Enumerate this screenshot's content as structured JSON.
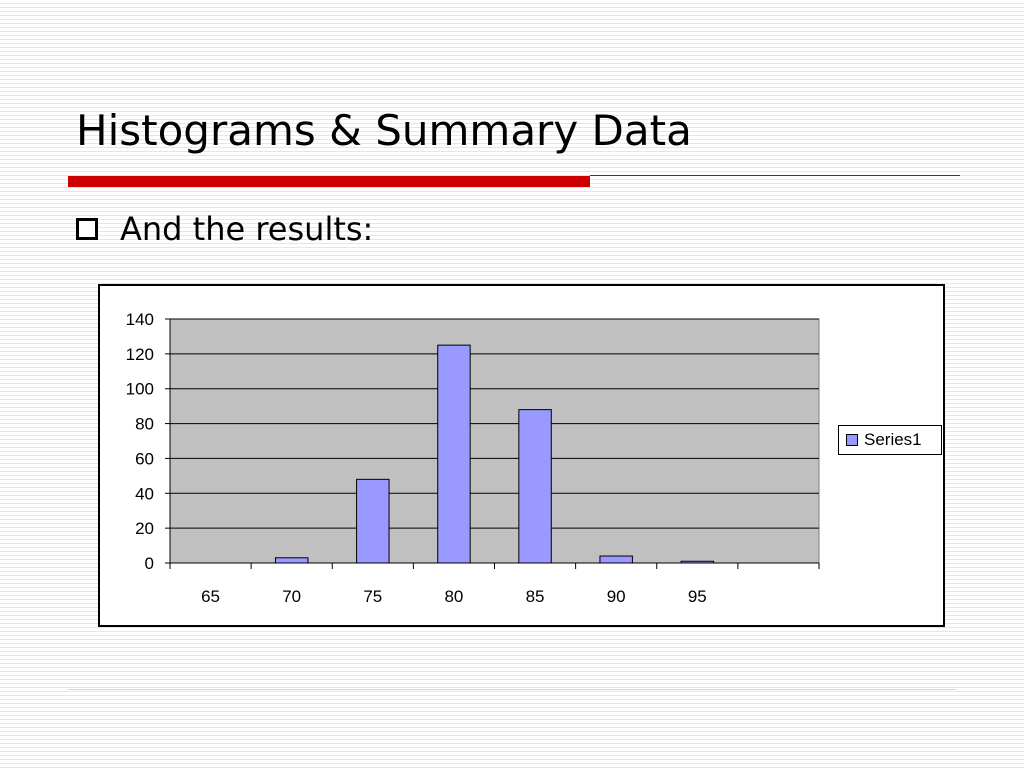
{
  "slide": {
    "title": "Histograms & Summary Data",
    "bullet": "And the results:"
  },
  "colors": {
    "accent": "#cc0000",
    "footer_rule": "#f0c8c8",
    "plot_area": "#c0c0c0",
    "bar_fill": "#9999ff",
    "gridline": "#000000"
  },
  "chart_data": {
    "type": "bar",
    "categories": [
      "65",
      "70",
      "75",
      "80",
      "85",
      "90",
      "95",
      ""
    ],
    "series": [
      {
        "name": "Series1",
        "values": [
          0,
          3,
          48,
          125,
          88,
          4,
          1,
          0
        ]
      }
    ],
    "yticks": [
      "0",
      "20",
      "40",
      "60",
      "80",
      "100",
      "120",
      "140"
    ],
    "ylim": [
      0,
      140
    ],
    "grid": true,
    "legend": "right"
  }
}
